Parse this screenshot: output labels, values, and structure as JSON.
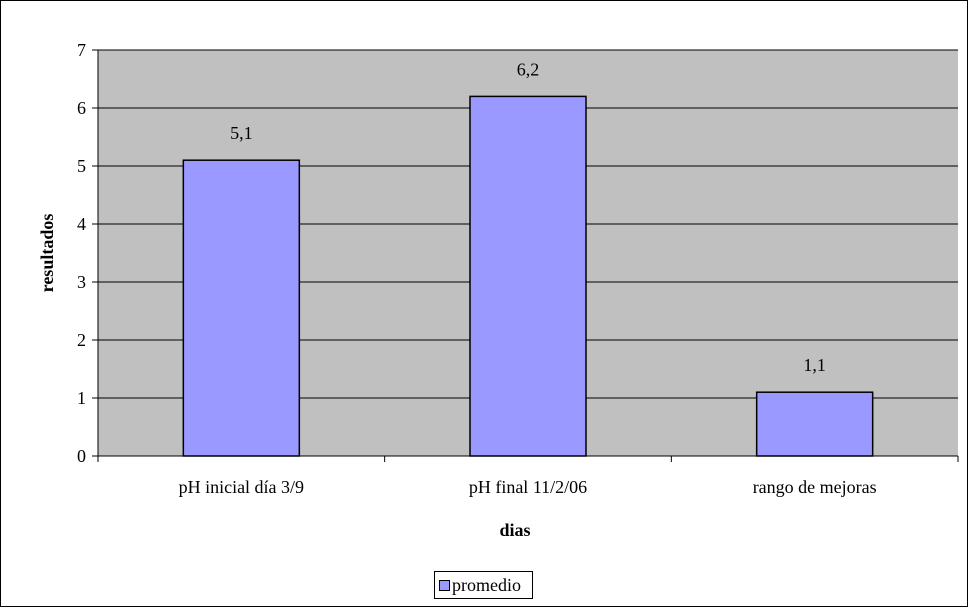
{
  "chart_data": {
    "type": "bar",
    "categories": [
      "pH inicial día 3/9",
      "pH final 11/2/06",
      "rango de mejoras"
    ],
    "series": [
      {
        "name": "promedio",
        "values": [
          5.1,
          6.2,
          1.1
        ],
        "data_labels": [
          "5,1",
          "6,2",
          "1,1"
        ]
      }
    ],
    "xlabel": "dias",
    "ylabel": "resultados",
    "ylim": [
      0,
      7
    ],
    "yticks": [
      "0",
      "1",
      "2",
      "3",
      "4",
      "5",
      "6",
      "7"
    ],
    "grid": true,
    "legend_position": "bottom",
    "colors": {
      "bar": "#9999ff",
      "plot_bg": "#c0c0c0",
      "axis": "#000000"
    }
  }
}
